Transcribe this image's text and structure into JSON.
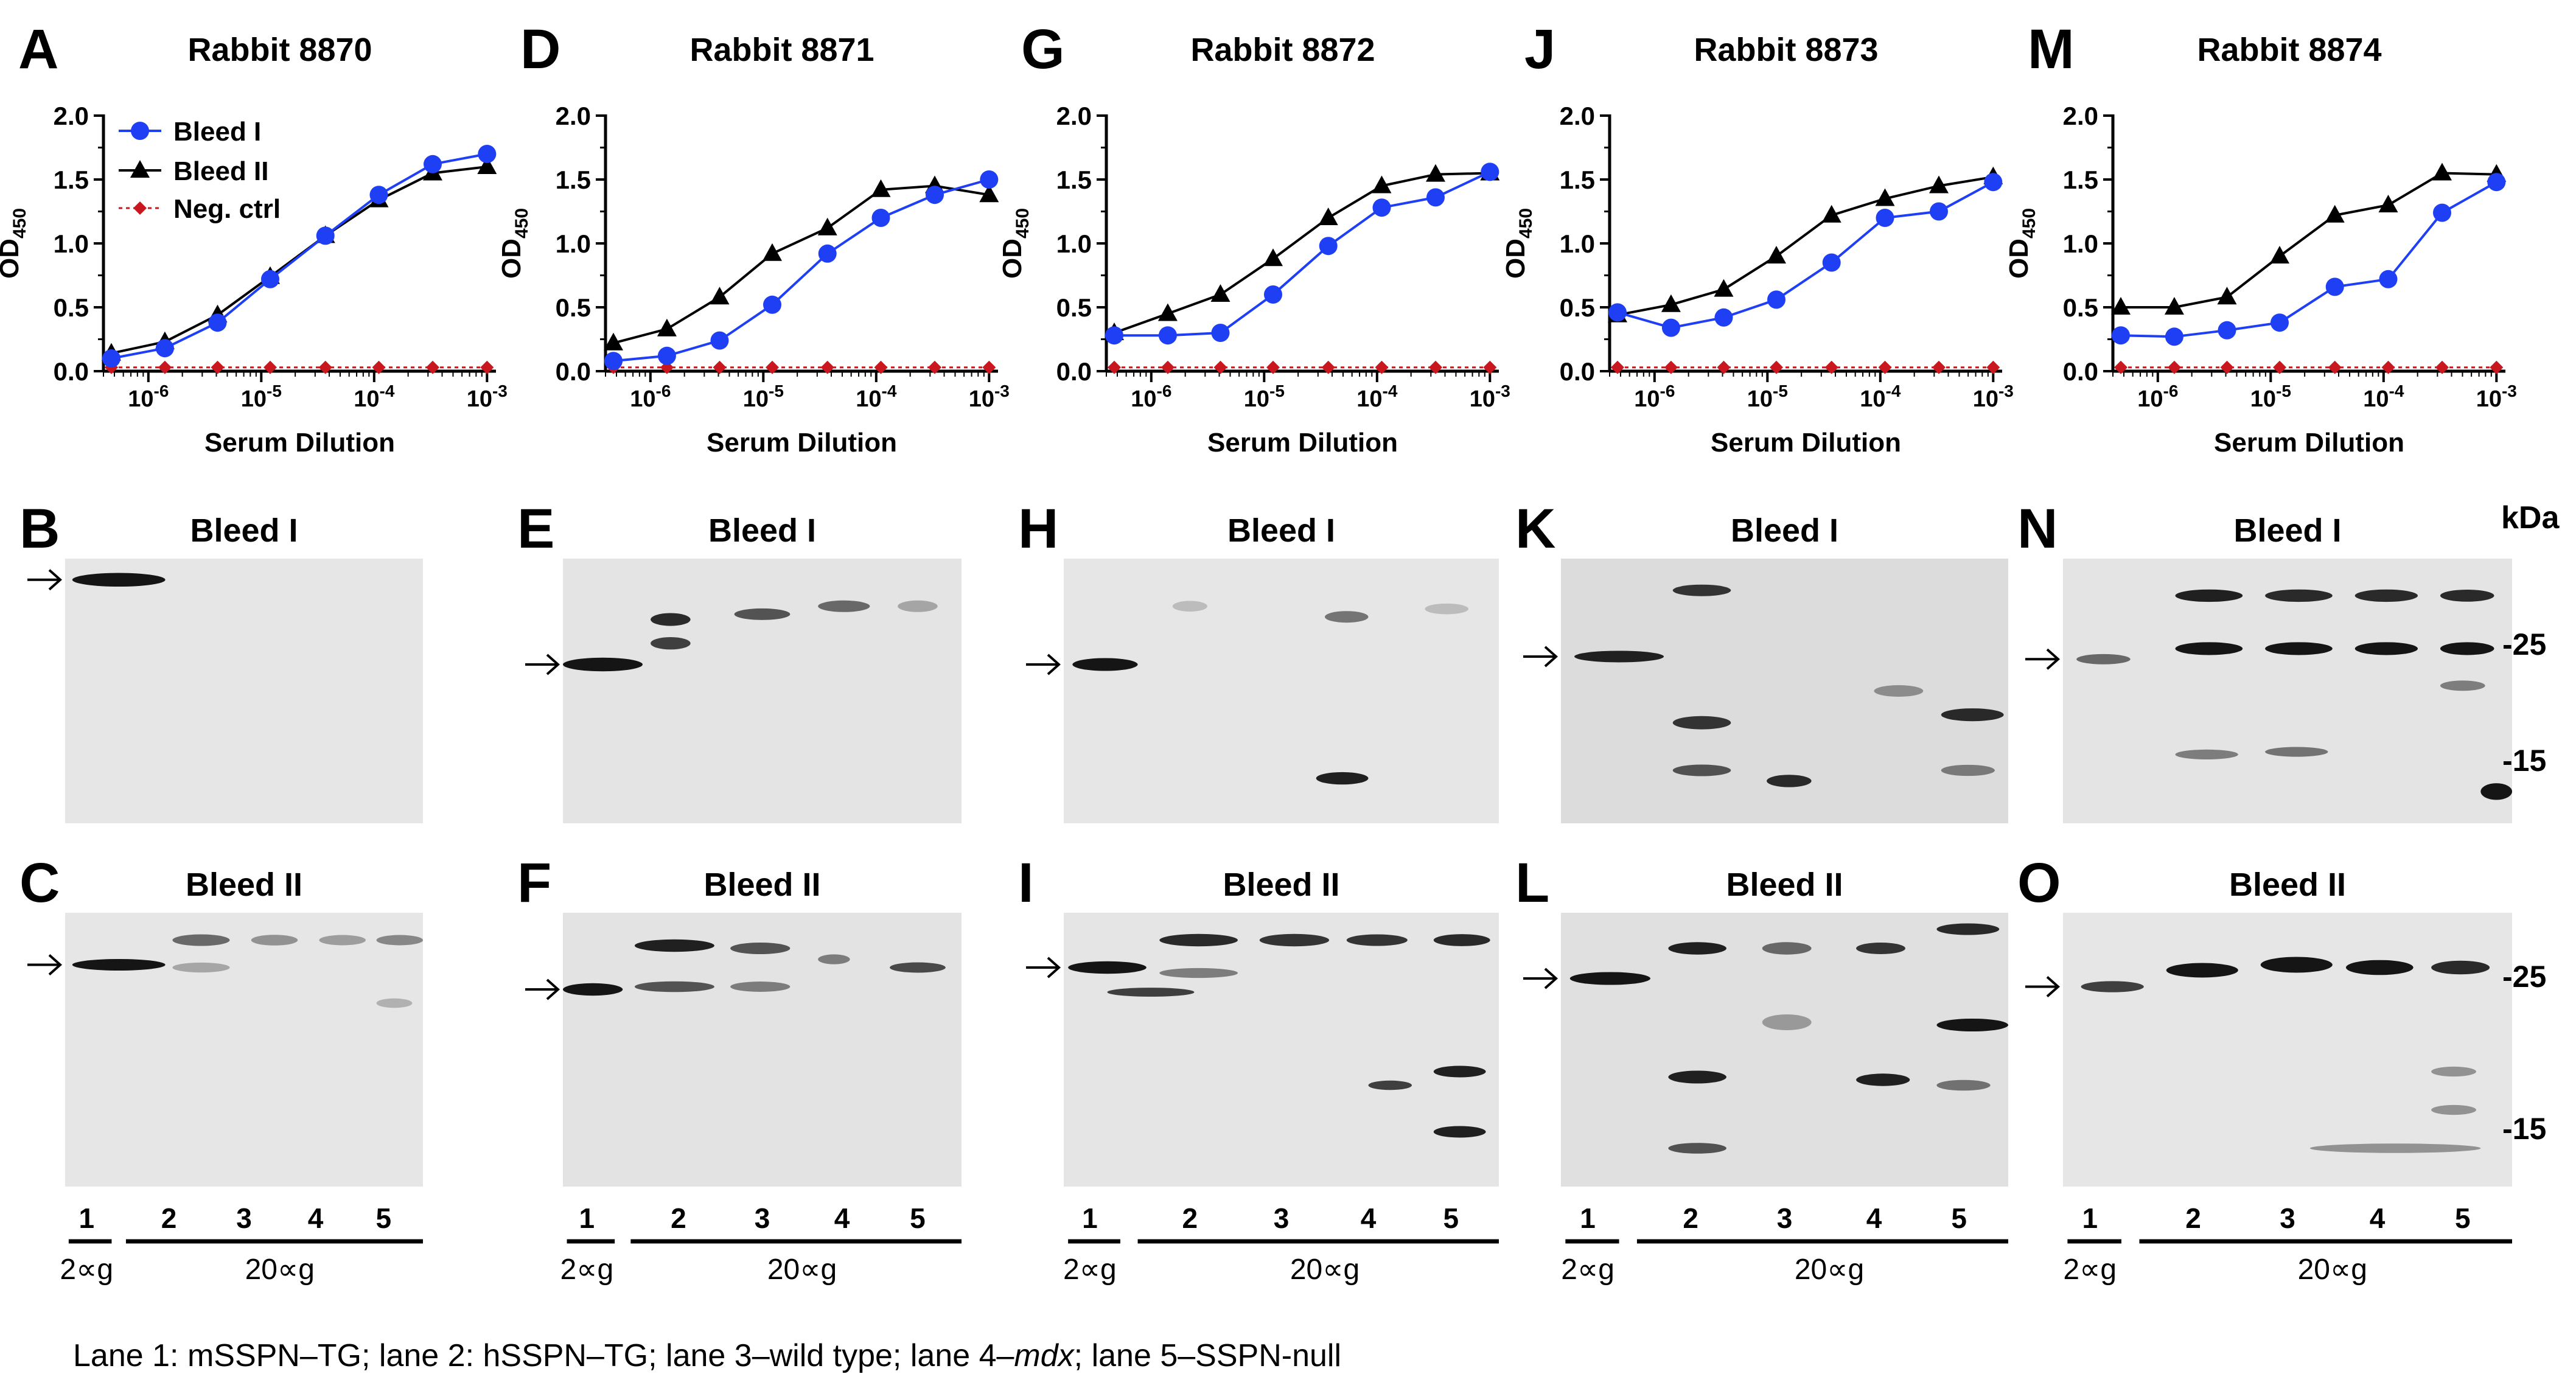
{
  "colors": {
    "bleed1": "#1f3ff5",
    "bleed2": "#000000",
    "neg": "#c8171e",
    "blot_bg": "#e7e7e7",
    "band": "#151515"
  },
  "legend": [
    "Bleed I",
    "Bleed II",
    "Neg. ctrl"
  ],
  "elisa_axes": {
    "ylabel_main": "OD",
    "ylabel_sub": "450",
    "xlabel": "Serum Dilution",
    "yticks": [
      "0.0",
      "0.5",
      "1.0",
      "1.5",
      "2.0"
    ],
    "xtick_base": "10",
    "xtick_exps": [
      "-6",
      "-5",
      "-4",
      "-3"
    ]
  },
  "chart_data": [
    {
      "type": "line",
      "panel": "A",
      "title": "Rabbit 8870",
      "xlabel": "Serum Dilution",
      "ylabel": "OD450",
      "xscale": "log",
      "xlim": [
        4e-07,
        0.0012
      ],
      "ylim": [
        0,
        2
      ],
      "x": [
        4.7e-07,
        1.4e-06,
        4.1e-06,
        1.2e-05,
        3.7e-05,
        0.00011,
        0.00033,
        0.001
      ],
      "series": [
        {
          "name": "Bleed I",
          "values": [
            0.1,
            0.18,
            0.38,
            0.72,
            1.06,
            1.38,
            1.62,
            1.7
          ]
        },
        {
          "name": "Bleed II",
          "values": [
            0.14,
            0.23,
            0.44,
            0.74,
            1.06,
            1.34,
            1.55,
            1.6
          ]
        },
        {
          "name": "Neg. ctrl",
          "values": [
            0.03,
            0.03,
            0.03,
            0.03,
            0.03,
            0.03,
            0.03,
            0.03
          ]
        }
      ]
    },
    {
      "type": "line",
      "panel": "D",
      "title": "Rabbit 8871",
      "xlabel": "Serum Dilution",
      "ylabel": "OD450",
      "xscale": "log",
      "xlim": [
        4e-07,
        0.0012
      ],
      "ylim": [
        0,
        2
      ],
      "x": [
        4.7e-07,
        1.4e-06,
        4.1e-06,
        1.2e-05,
        3.7e-05,
        0.00011,
        0.00033,
        0.001
      ],
      "series": [
        {
          "name": "Bleed I",
          "values": [
            0.08,
            0.12,
            0.24,
            0.52,
            0.92,
            1.2,
            1.38,
            1.5
          ]
        },
        {
          "name": "Bleed II",
          "values": [
            0.22,
            0.33,
            0.58,
            0.92,
            1.12,
            1.42,
            1.45,
            1.38
          ]
        },
        {
          "name": "Neg. ctrl",
          "values": [
            0.03,
            0.03,
            0.03,
            0.03,
            0.03,
            0.03,
            0.03,
            0.03
          ]
        }
      ]
    },
    {
      "type": "line",
      "panel": "G",
      "title": "Rabbit 8872",
      "xlabel": "Serum Dilution",
      "ylabel": "OD450",
      "xscale": "log",
      "xlim": [
        4e-07,
        0.0012
      ],
      "ylim": [
        0,
        2
      ],
      "x": [
        4.7e-07,
        1.4e-06,
        4.1e-06,
        1.2e-05,
        3.7e-05,
        0.00011,
        0.00033,
        0.001
      ],
      "series": [
        {
          "name": "Bleed I",
          "values": [
            0.28,
            0.28,
            0.3,
            0.6,
            0.98,
            1.28,
            1.36,
            1.56
          ]
        },
        {
          "name": "Bleed II",
          "values": [
            0.3,
            0.45,
            0.6,
            0.88,
            1.2,
            1.45,
            1.54,
            1.55
          ]
        },
        {
          "name": "Neg. ctrl",
          "values": [
            0.03,
            0.03,
            0.03,
            0.03,
            0.03,
            0.03,
            0.03,
            0.03
          ]
        }
      ]
    },
    {
      "type": "line",
      "panel": "J",
      "title": "Rabbit 8873",
      "xlabel": "Serum Dilution",
      "ylabel": "OD450",
      "xscale": "log",
      "xlim": [
        4e-07,
        0.0012
      ],
      "ylim": [
        0,
        2
      ],
      "x": [
        4.7e-07,
        1.4e-06,
        4.1e-06,
        1.2e-05,
        3.7e-05,
        0.00011,
        0.00033,
        0.001
      ],
      "series": [
        {
          "name": "Bleed I",
          "values": [
            0.46,
            0.34,
            0.42,
            0.56,
            0.85,
            1.2,
            1.25,
            1.48
          ]
        },
        {
          "name": "Bleed II",
          "values": [
            0.44,
            0.52,
            0.64,
            0.9,
            1.22,
            1.35,
            1.45,
            1.52
          ]
        },
        {
          "name": "Neg. ctrl",
          "values": [
            0.03,
            0.03,
            0.03,
            0.03,
            0.03,
            0.03,
            0.03,
            0.03
          ]
        }
      ]
    },
    {
      "type": "line",
      "panel": "M",
      "title": "Rabbit 8874",
      "xlabel": "Serum Dilution",
      "ylabel": "OD450",
      "xscale": "log",
      "xlim": [
        4e-07,
        0.0012
      ],
      "ylim": [
        0,
        2
      ],
      "x": [
        4.7e-07,
        1.4e-06,
        4.1e-06,
        1.2e-05,
        3.7e-05,
        0.00011,
        0.00033,
        0.001
      ],
      "series": [
        {
          "name": "Bleed I",
          "values": [
            0.28,
            0.27,
            0.32,
            0.38,
            0.66,
            0.72,
            1.24,
            1.48
          ]
        },
        {
          "name": "Bleed II",
          "values": [
            0.5,
            0.5,
            0.58,
            0.9,
            1.22,
            1.3,
            1.55,
            1.54
          ]
        },
        {
          "name": "Neg. ctrl",
          "values": [
            0.03,
            0.03,
            0.03,
            0.03,
            0.03,
            0.03,
            0.03,
            0.03
          ]
        }
      ]
    }
  ],
  "blots": {
    "bleed1_title": "Bleed I",
    "bleed2_title": "Bleed II",
    "top_letters": [
      "B",
      "E",
      "H",
      "K",
      "N"
    ],
    "bottom_letters": [
      "C",
      "F",
      "I",
      "L",
      "O"
    ],
    "arrow": "→",
    "kda_label": "kDa",
    "marker_25": "-25",
    "marker_15": "-15"
  },
  "lanes": {
    "numbers": [
      "1",
      "2",
      "3",
      "4",
      "5"
    ],
    "amount_1": "2∝g",
    "amount_2": "20∝g"
  },
  "caption": {
    "part1": "Lane 1: mSSPN–TG; lane 2: hSSPN–TG; lane 3–wild type; lane 4–",
    "italic": "mdx",
    "part2": "; lane 5–SSPN-null"
  }
}
